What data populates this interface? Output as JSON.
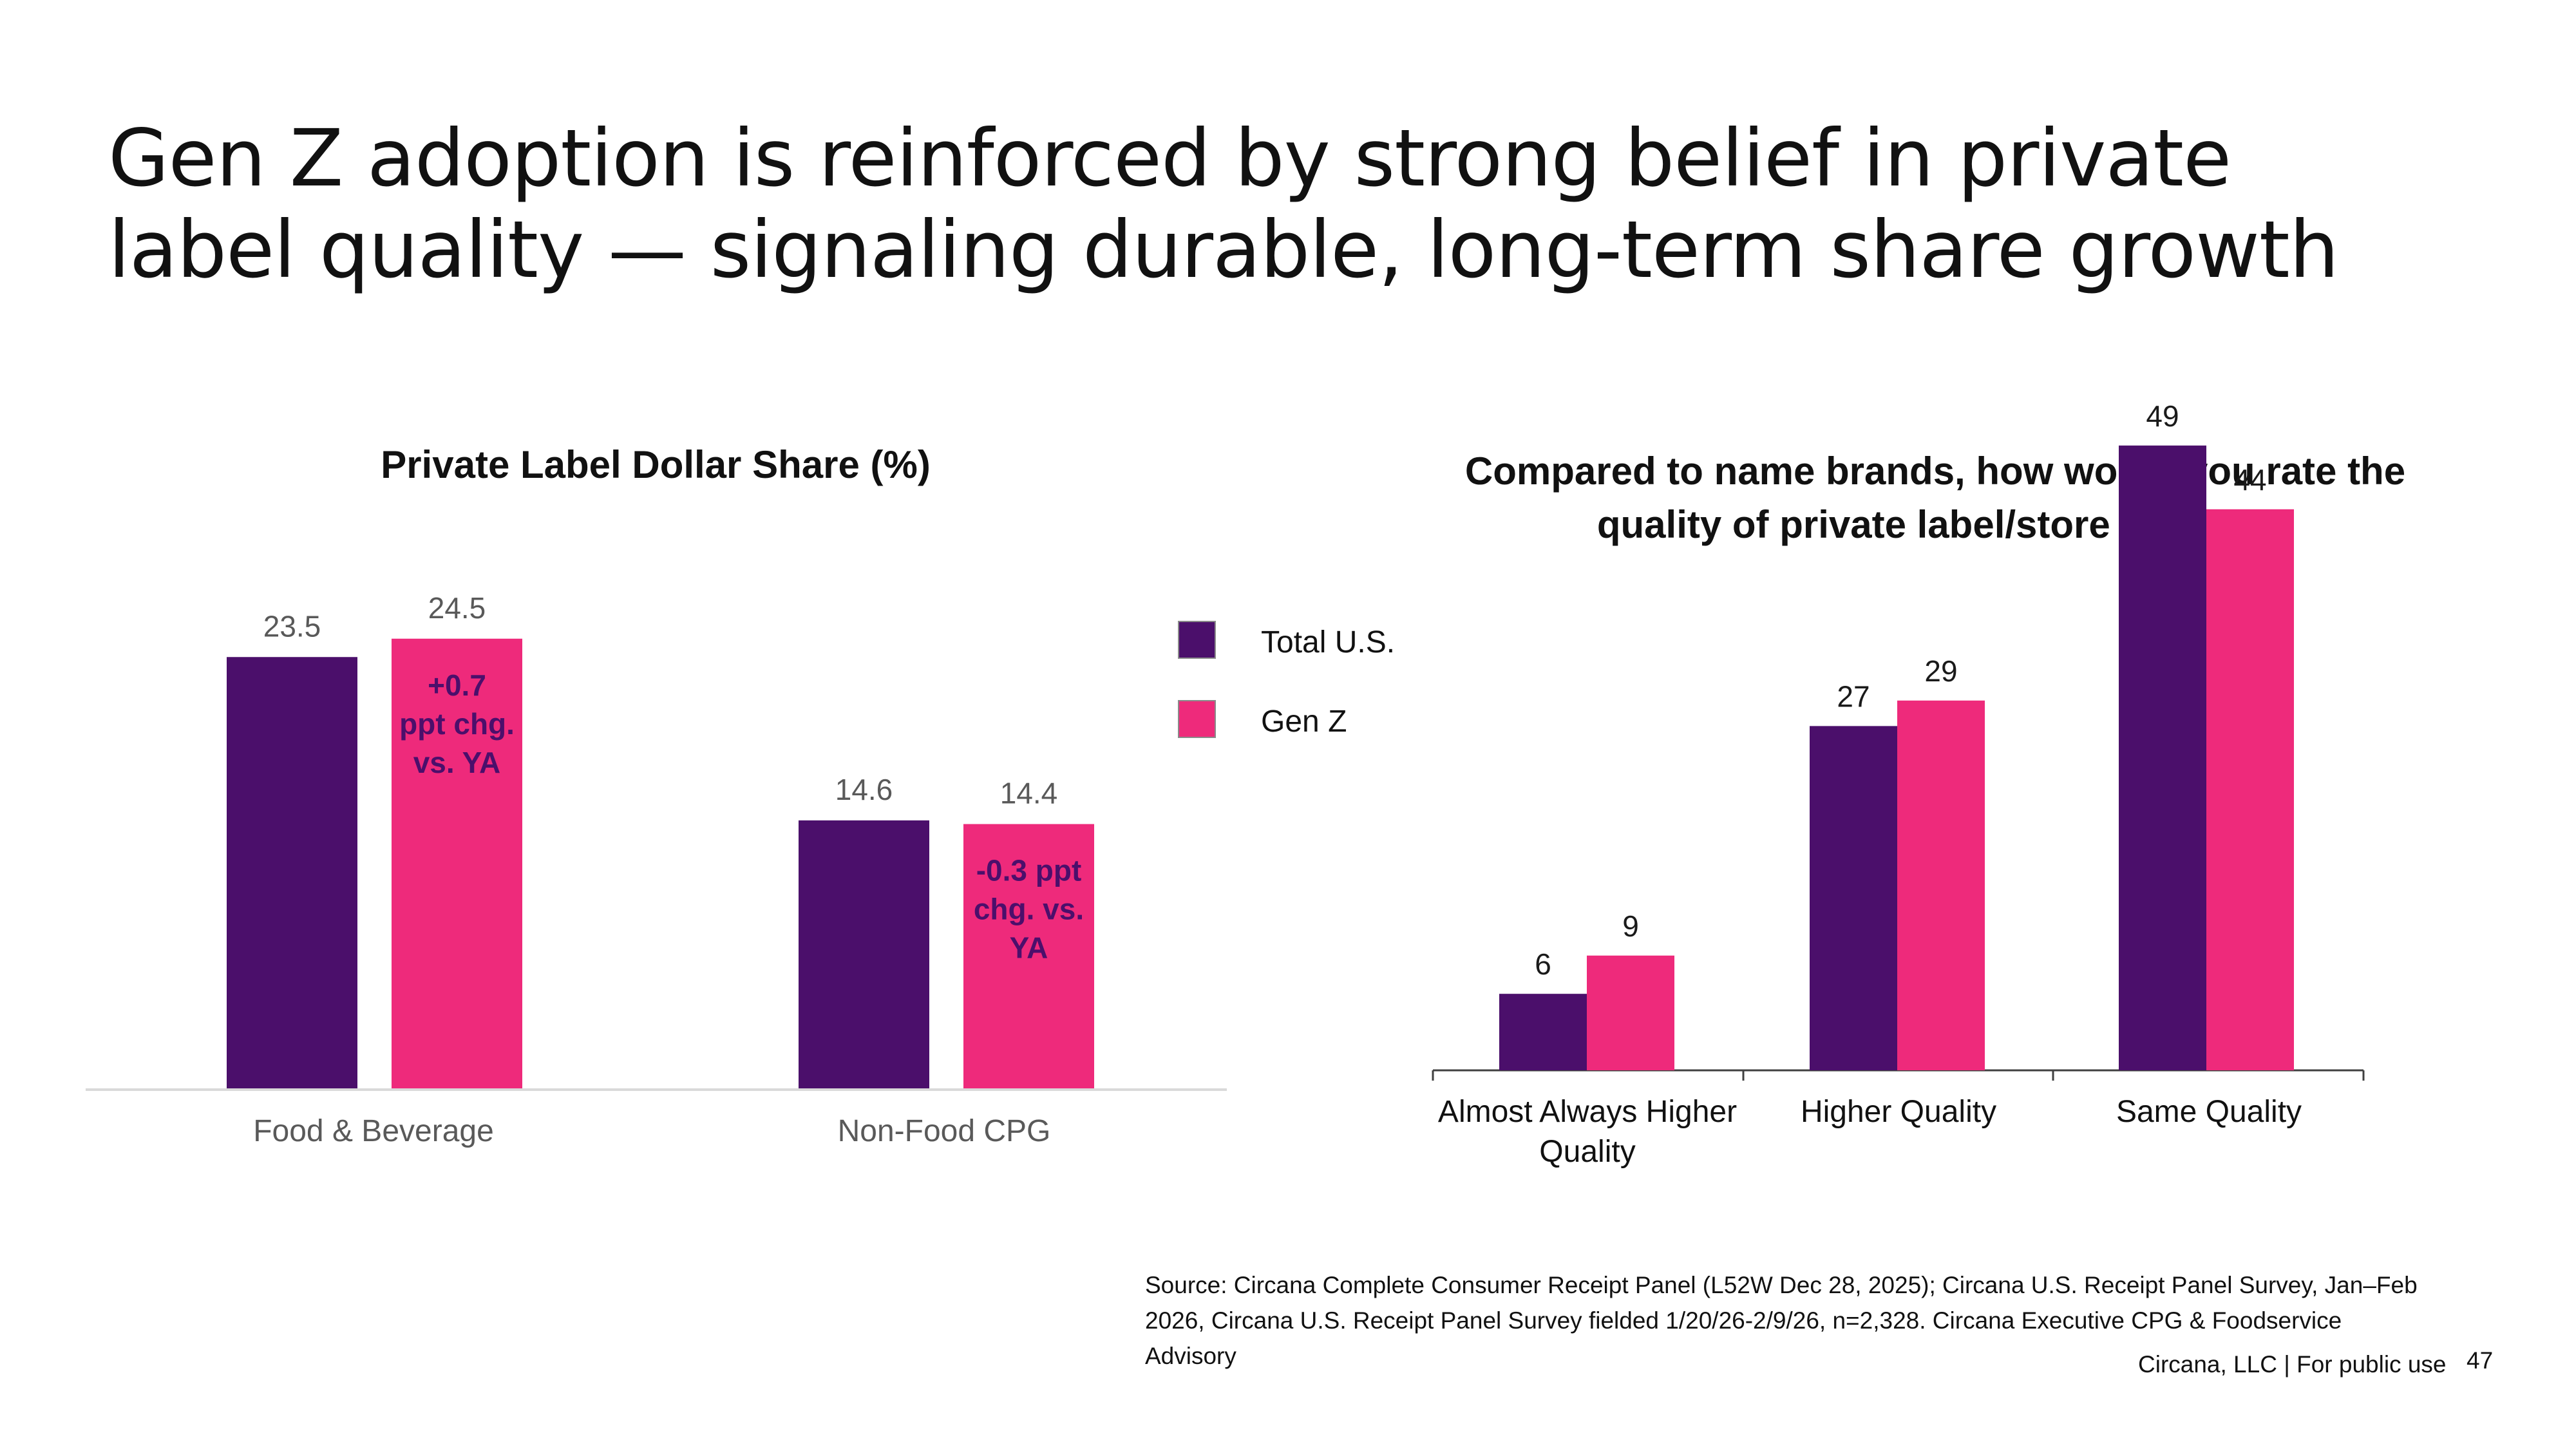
{
  "page": {
    "title_lines": [
      "Gen Z adoption is reinforced by strong belief in private",
      "label quality — signaling durable, long-term share growth"
    ],
    "source": "Source: Circana Complete Consumer Receipt Panel (L52W Dec 28, 2025); Circana U.S. Receipt Panel Survey, Jan–Feb 2026, Circana U.S. Receipt Panel Survey fielded 1/20/26-2/9/26, n=2,328. Circana Executive CPG & Foodservice Advisory",
    "footer": "Circana, LLC | For public use",
    "page_number": "47"
  },
  "colors": {
    "total_us": "#4b0f6b",
    "gen_z": "#ee2a7b"
  },
  "legend": [
    {
      "label": "Total U.S.",
      "color": "#4b0f6b"
    },
    {
      "label": "Gen Z",
      "color": "#ee2a7b"
    }
  ],
  "chart_data": [
    {
      "type": "bar",
      "title": "Private Label Dollar Share (%)",
      "categories": [
        "Food & Beverage",
        "Non-Food CPG"
      ],
      "series": [
        {
          "name": "Total U.S.",
          "values": [
            23.5,
            14.6
          ]
        },
        {
          "name": "Gen Z",
          "values": [
            24.5,
            14.4
          ]
        }
      ],
      "annotations": [
        [
          "+0.7",
          "ppt chg.",
          "vs. YA"
        ],
        [
          "-0.3 ppt",
          "chg. vs.",
          "YA"
        ]
      ],
      "ylim": [
        0,
        25
      ],
      "legend_position": "right"
    },
    {
      "type": "bar",
      "title_lines": [
        "Compared to name brands, how would you rate the",
        "quality of private label/store brands?"
      ],
      "categories": [
        [
          "Almost Always Higher",
          "Quality"
        ],
        [
          "Higher Quality"
        ],
        [
          "Same Quality"
        ]
      ],
      "series": [
        {
          "name": "Total U.S.",
          "values": [
            6,
            27,
            49
          ]
        },
        {
          "name": "Gen Z",
          "values": [
            9,
            29,
            44
          ]
        }
      ],
      "ylim": [
        0,
        50
      ]
    }
  ]
}
